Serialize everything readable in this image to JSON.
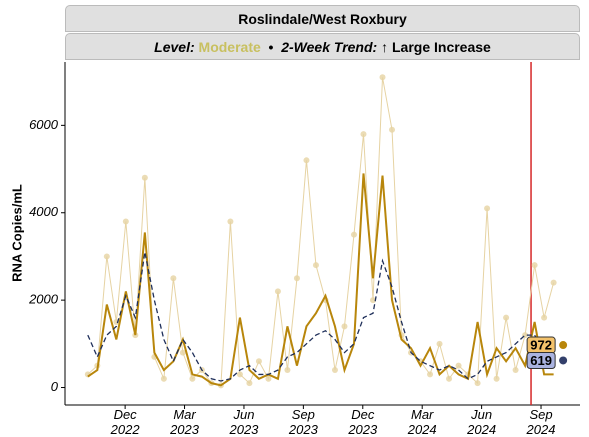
{
  "chart_data": {
    "type": "line",
    "title": "Roslindale/West Roxbury",
    "subtitle": {
      "level_label": "Level:",
      "level": "Moderate",
      "level_color": "#c8c060",
      "separator": "•",
      "trend_label": "2-Week Trend:",
      "trend": "↑ Large Increase"
    },
    "y_label": "RNA Copies/mL",
    "x": [
      2022.76,
      2022.8,
      2022.84,
      2022.88,
      2022.92,
      2022.96,
      2023.0,
      2023.04,
      2023.08,
      2023.12,
      2023.16,
      2023.2,
      2023.24,
      2023.28,
      2023.32,
      2023.36,
      2023.4,
      2023.44,
      2023.48,
      2023.52,
      2023.56,
      2023.6,
      2023.64,
      2023.68,
      2023.72,
      2023.76,
      2023.8,
      2023.84,
      2023.88,
      2023.92,
      2023.96,
      2024.0,
      2024.04,
      2024.08,
      2024.12,
      2024.16,
      2024.2,
      2024.24,
      2024.28,
      2024.32,
      2024.36,
      2024.4,
      2024.44,
      2024.48,
      2024.52,
      2024.56,
      2024.6,
      2024.64,
      2024.68,
      2024.72
    ],
    "series": [
      {
        "kind": "points",
        "color": "#e6d3a3",
        "values": [
          300,
          500,
          3000,
          1500,
          3800,
          1200,
          4800,
          700,
          200,
          2500,
          800,
          200,
          400,
          100,
          50,
          3800,
          300,
          100,
          600,
          200,
          2200,
          400,
          2500,
          5200,
          2800,
          2000,
          400,
          1400,
          3500,
          5800,
          2000,
          7100,
          5900,
          1200,
          800,
          600,
          300,
          1000,
          200,
          500,
          300,
          100,
          4100,
          200,
          1600,
          400,
          1200,
          2800,
          1600,
          2400
        ]
      },
      {
        "kind": "smooth",
        "color": "#b8860b",
        "values": [
          250,
          400,
          1900,
          1100,
          2200,
          1200,
          3550,
          800,
          400,
          600,
          1100,
          300,
          250,
          100,
          50,
          200,
          1600,
          400,
          200,
          300,
          200,
          1400,
          500,
          1400,
          1700,
          2100,
          1400,
          400,
          1000,
          4900,
          2500,
          4850,
          2000,
          1100,
          900,
          500,
          900,
          300,
          500,
          300,
          200,
          1500,
          300,
          900,
          600,
          900,
          500,
          1500,
          300,
          300
        ]
      },
      {
        "kind": "trend",
        "color": "#1f2f5a",
        "dashed": true,
        "values": [
          1200,
          700,
          1200,
          1400,
          2100,
          1600,
          3100,
          2000,
          1100,
          600,
          1100,
          800,
          400,
          200,
          150,
          200,
          400,
          500,
          300,
          300,
          400,
          700,
          800,
          1000,
          1200,
          1300,
          1100,
          800,
          1000,
          1600,
          1700,
          2900,
          2300,
          1500,
          800,
          600,
          500,
          400,
          500,
          400,
          200,
          300,
          600,
          700,
          800,
          1000,
          1200,
          1200,
          800,
          650
        ]
      }
    ],
    "latest_x": 2024.76,
    "latest": [
      {
        "value": 972,
        "color": "#b8860b",
        "box": "#f3c26b"
      },
      {
        "value": 619,
        "color": "#33406b",
        "box": "#aab3e0"
      }
    ],
    "reference_x": 2024.625,
    "reference_color": "#d62728",
    "xlim": [
      2022.664,
      2024.831
    ],
    "xticks": [
      {
        "value": 2022.917,
        "label": "Dec\n2022"
      },
      {
        "value": 2023.167,
        "label": "Mar\n2023"
      },
      {
        "value": 2023.417,
        "label": "Jun\n2023"
      },
      {
        "value": 2023.667,
        "label": "Sep\n2023"
      },
      {
        "value": 2023.917,
        "label": "Dec\n2023"
      },
      {
        "value": 2024.167,
        "label": "Mar\n2024"
      },
      {
        "value": 2024.417,
        "label": "Jun\n2024"
      },
      {
        "value": 2024.667,
        "label": "Sep\n2024"
      }
    ],
    "ylim": [
      -400,
      7450
    ],
    "yticks": [
      0,
      2000,
      4000,
      6000
    ],
    "grid": false
  }
}
